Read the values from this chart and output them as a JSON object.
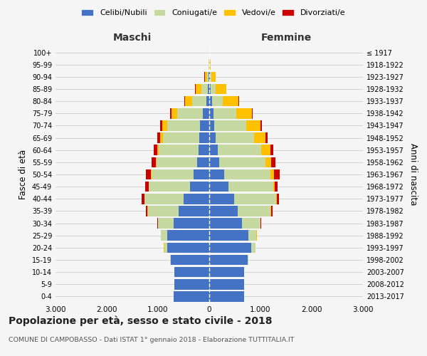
{
  "age_groups": [
    "0-4",
    "5-9",
    "10-14",
    "15-19",
    "20-24",
    "25-29",
    "30-34",
    "35-39",
    "40-44",
    "45-49",
    "50-54",
    "55-59",
    "60-64",
    "65-69",
    "70-74",
    "75-79",
    "80-84",
    "85-89",
    "90-94",
    "95-99",
    "100+"
  ],
  "birth_years": [
    "2013-2017",
    "2008-2012",
    "2003-2007",
    "1998-2002",
    "1993-1997",
    "1988-1992",
    "1983-1987",
    "1978-1982",
    "1973-1977",
    "1968-1972",
    "1963-1967",
    "1958-1962",
    "1953-1957",
    "1948-1952",
    "1943-1947",
    "1938-1942",
    "1933-1937",
    "1928-1932",
    "1923-1927",
    "1918-1922",
    "≤ 1917"
  ],
  "colors": {
    "celibe": "#4472c4",
    "coniugato": "#c6d9a0",
    "vedovo": "#ffc000",
    "divorziato": "#cc0000"
  },
  "male": {
    "celibe": [
      700,
      680,
      680,
      750,
      820,
      820,
      700,
      600,
      500,
      380,
      310,
      230,
      210,
      200,
      180,
      120,
      50,
      30,
      10,
      3,
      2
    ],
    "coniugato": [
      0,
      0,
      5,
      15,
      60,
      120,
      300,
      600,
      760,
      800,
      820,
      800,
      780,
      700,
      640,
      500,
      280,
      120,
      30,
      5,
      0
    ],
    "vedovo": [
      0,
      0,
      0,
      5,
      5,
      5,
      5,
      5,
      5,
      5,
      10,
      15,
      30,
      60,
      90,
      120,
      140,
      120,
      50,
      12,
      2
    ],
    "divorziato": [
      0,
      0,
      0,
      0,
      3,
      5,
      15,
      30,
      50,
      60,
      90,
      80,
      70,
      60,
      50,
      30,
      10,
      5,
      2,
      0,
      0
    ]
  },
  "female": {
    "celibe": [
      680,
      680,
      680,
      750,
      820,
      760,
      640,
      560,
      480,
      370,
      290,
      200,
      160,
      130,
      100,
      80,
      50,
      30,
      12,
      5,
      2
    ],
    "coniugato": [
      0,
      0,
      5,
      15,
      80,
      160,
      360,
      640,
      820,
      880,
      910,
      900,
      850,
      740,
      620,
      450,
      220,
      100,
      30,
      5,
      0
    ],
    "vedovo": [
      0,
      0,
      0,
      5,
      5,
      5,
      5,
      10,
      15,
      30,
      70,
      110,
      180,
      230,
      280,
      300,
      300,
      200,
      80,
      20,
      3
    ],
    "divorziato": [
      0,
      0,
      0,
      0,
      3,
      5,
      15,
      30,
      50,
      60,
      100,
      80,
      60,
      40,
      30,
      20,
      10,
      5,
      2,
      0,
      0
    ]
  },
  "title": "Popolazione per età, sesso e stato civile - 2018",
  "subtitle": "COMUNE DI CAMPOBASSO - Dati ISTAT 1° gennaio 2018 - Elaborazione TUTTITALIA.IT",
  "ylabel_left": "Fasce di età",
  "ylabel_right": "Anni di nascita",
  "xlabel_left": "Maschi",
  "xlabel_right": "Femmine",
  "xlim": 3000,
  "background_color": "#f5f5f5",
  "grid_color": "#cccccc",
  "legend_labels": [
    "Celibi/Nubili",
    "Coniugati/e",
    "Vedovi/e",
    "Divorziati/e"
  ]
}
